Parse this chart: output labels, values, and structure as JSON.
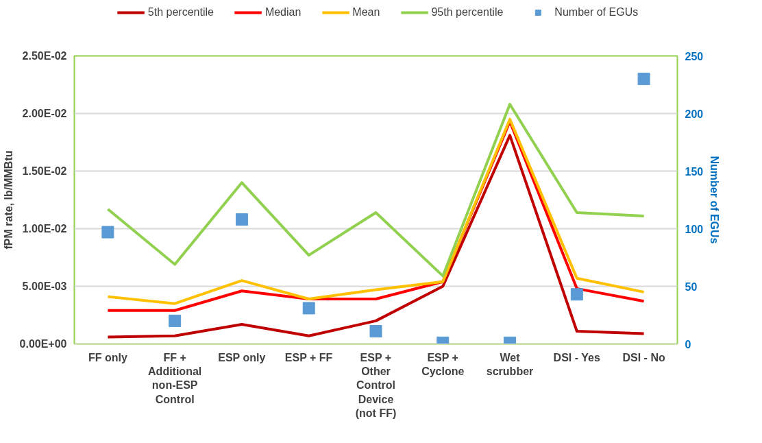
{
  "chart_data": {
    "type": "line",
    "categories": [
      "FF only",
      "FF +\nAdditional\nnon-ESP\nControl",
      "ESP only",
      "ESP + FF",
      "ESP +\nOther\nControl\nDevice\n(not FF)",
      "ESP +\nCyclone",
      "Wet\nscrubber",
      "DSI - Yes",
      "DSI - No"
    ],
    "ylabel": "fPM rate, lb/MMBtu",
    "y2label": "Number of EGUs",
    "ylim": [
      0,
      0.025
    ],
    "yticks": [
      {
        "value": 0,
        "label": "0.00E+00"
      },
      {
        "value": 0.005,
        "label": "5.00E-03"
      },
      {
        "value": 0.01,
        "label": "1.00E-02"
      },
      {
        "value": 0.015,
        "label": "1.50E-02"
      },
      {
        "value": 0.02,
        "label": "2.00E-02"
      },
      {
        "value": 0.025,
        "label": "2.50E-02"
      }
    ],
    "y2lim": [
      0,
      250
    ],
    "y2ticks": [
      0,
      50,
      100,
      150,
      200,
      250
    ],
    "grid": "y",
    "legend": "top",
    "line_style": "solid",
    "series": [
      {
        "name": "5th percentile",
        "color": "#c00000",
        "values": [
          0.0006,
          0.0007,
          0.0017,
          0.0007,
          0.002,
          0.005,
          0.0181,
          0.0011,
          0.0009
        ]
      },
      {
        "name": "Median",
        "color": "#ff0000",
        "values": [
          0.0029,
          0.0029,
          0.0046,
          0.0039,
          0.0039,
          0.0054,
          0.0193,
          0.0048,
          0.0037
        ]
      },
      {
        "name": "Mean",
        "color": "#ffc000",
        "values": [
          0.0041,
          0.0035,
          0.0055,
          0.0039,
          0.0047,
          0.0054,
          0.0195,
          0.0057,
          0.0045
        ]
      },
      {
        "name": "95th percentile",
        "color": "#92d050",
        "values": [
          0.0117,
          0.0069,
          0.014,
          0.0077,
          0.0114,
          0.0059,
          0.0208,
          0.0114,
          0.0111
        ]
      },
      {
        "name": "Number of EGUs",
        "color": "#5b9bd5",
        "type": "scatter",
        "axis": "y2",
        "marker": "square",
        "values": [
          97,
          20,
          108,
          31,
          11,
          1,
          1,
          43,
          230
        ]
      }
    ]
  }
}
